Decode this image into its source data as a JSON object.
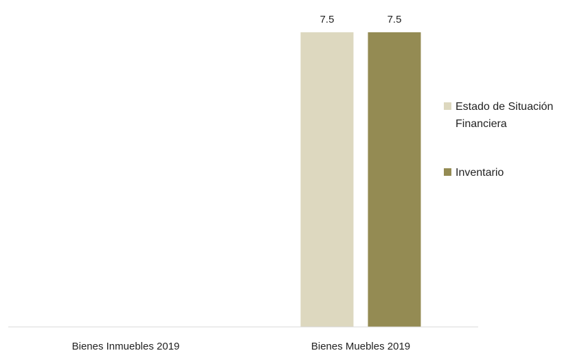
{
  "chart_data": {
    "type": "bar",
    "categories": [
      "Bienes Inmuebles 2019",
      "Bienes Muebles 2019"
    ],
    "series": [
      {
        "name": "Estado de Situación Financiera",
        "values": [
          null,
          7.5
        ],
        "color": "#ddd8bf"
      },
      {
        "name": "Inventario",
        "values": [
          null,
          7.5
        ],
        "color": "#948b53"
      }
    ],
    "data_labels": [
      [
        "",
        "7.5"
      ],
      [
        "",
        "7.5"
      ]
    ],
    "ylim": [
      0,
      7.5
    ],
    "grid": false,
    "legend_position": "right",
    "axis_color": "#d9d9d9"
  }
}
